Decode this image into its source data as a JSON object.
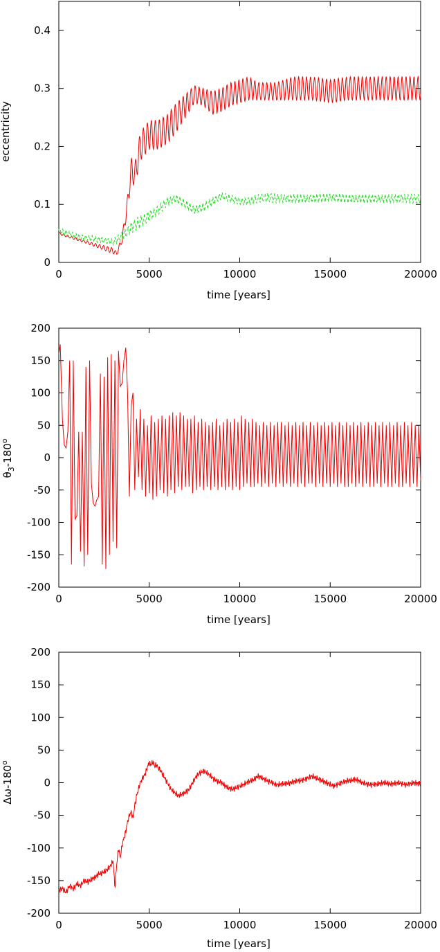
{
  "chart_data": [
    {
      "type": "line",
      "xlabel": "time [years]",
      "ylabel": "eccentricity",
      "xlim": [
        0,
        20000
      ],
      "ylim": [
        0,
        0.45
      ],
      "xticks": [
        0,
        5000,
        10000,
        15000,
        20000
      ],
      "yticks": [
        0,
        0.1,
        0.2,
        0.3,
        0.4
      ],
      "xtick_labels": [
        "0",
        "5000",
        "10000",
        "15000",
        "20000"
      ],
      "ytick_labels": [
        "0",
        "0.1",
        "0.2",
        "0.3",
        "0.4"
      ],
      "grid": false,
      "series": [
        {
          "color": "#ee0000",
          "dash": "",
          "x": [
            0,
            500,
            1000,
            1500,
            2000,
            2500,
            3000,
            3200,
            3500,
            3800,
            4000,
            4200,
            4500,
            5000,
            5500,
            6000,
            6500,
            7000,
            7500,
            8000,
            8500,
            9000,
            9500,
            10000,
            10500,
            11000,
            12000,
            13000,
            14000,
            15000,
            16000,
            17000,
            18000,
            19000,
            20000
          ],
          "y": [
            0.05,
            0.045,
            0.04,
            0.035,
            0.03,
            0.025,
            0.02,
            0.015,
            0.04,
            0.1,
            0.16,
            0.15,
            0.2,
            0.22,
            0.22,
            0.23,
            0.25,
            0.27,
            0.29,
            0.285,
            0.275,
            0.28,
            0.29,
            0.295,
            0.3,
            0.295,
            0.295,
            0.3,
            0.3,
            0.295,
            0.3,
            0.3,
            0.3,
            0.3,
            0.3
          ],
          "osc_amp": [
            0.002,
            0.002,
            0.002,
            0.002,
            0.003,
            0.004,
            0.005,
            0.003,
            0.006,
            0.015,
            0.02,
            0.02,
            0.025,
            0.025,
            0.025,
            0.025,
            0.025,
            0.02,
            0.015,
            0.015,
            0.02,
            0.02,
            0.02,
            0.02,
            0.02,
            0.015,
            0.015,
            0.02,
            0.02,
            0.02,
            0.02,
            0.02,
            0.02,
            0.02,
            0.02
          ]
        },
        {
          "color": "#22dd22",
          "dash": "4,3",
          "x": [
            0,
            500,
            1000,
            1500,
            2000,
            2500,
            3000,
            3500,
            4000,
            4500,
            5000,
            5500,
            6000,
            6500,
            7000,
            7500,
            8000,
            8500,
            9000,
            9500,
            10000,
            10500,
            11000,
            11500,
            12000,
            13000,
            14000,
            15000,
            16000,
            17000,
            18000,
            19000,
            20000
          ],
          "y": [
            0.055,
            0.05,
            0.045,
            0.042,
            0.04,
            0.038,
            0.035,
            0.045,
            0.06,
            0.07,
            0.08,
            0.09,
            0.105,
            0.11,
            0.1,
            0.09,
            0.095,
            0.105,
            0.115,
            0.11,
            0.105,
            0.105,
            0.11,
            0.112,
            0.11,
            0.11,
            0.11,
            0.112,
            0.11,
            0.11,
            0.11,
            0.11,
            0.11
          ],
          "osc_amp": [
            0.004,
            0.004,
            0.004,
            0.004,
            0.004,
            0.004,
            0.004,
            0.006,
            0.008,
            0.008,
            0.008,
            0.006,
            0.006,
            0.006,
            0.006,
            0.006,
            0.006,
            0.006,
            0.005,
            0.005,
            0.005,
            0.005,
            0.006,
            0.006,
            0.006,
            0.006,
            0.006,
            0.006,
            0.006,
            0.006,
            0.006,
            0.006,
            0.006
          ]
        }
      ]
    },
    {
      "type": "line",
      "xlabel": "time [years]",
      "ylabel_main": "θ",
      "ylabel_sub": "3",
      "ylabel_rest": "-180",
      "ylabel_sup": "o",
      "xlim": [
        0,
        20000
      ],
      "ylim": [
        -200,
        200
      ],
      "xticks": [
        0,
        5000,
        10000,
        15000,
        20000
      ],
      "yticks": [
        -200,
        -150,
        -100,
        -50,
        0,
        50,
        100,
        150,
        200
      ],
      "xtick_labels": [
        "0",
        "5000",
        "10000",
        "15000",
        "20000"
      ],
      "ytick_labels": [
        "-200",
        "-150",
        "-100",
        "-50",
        "0",
        "50",
        "100",
        "150",
        "200"
      ],
      "grid": false,
      "series": [
        {
          "color": "#ee0000",
          "dash": "",
          "x": [
            0,
            80,
            200,
            300,
            400,
            500,
            600,
            700,
            800,
            900,
            1000,
            1100,
            1200,
            1300,
            1400,
            1500,
            1600,
            1700,
            1800,
            1900,
            2000,
            2100,
            2200,
            2300,
            2400,
            2500,
            2600,
            2700,
            2800,
            2900,
            3000,
            3100,
            3200,
            3300,
            3400,
            3500,
            3600,
            3700,
            3800,
            3900,
            4000,
            4100,
            4200,
            4300,
            4400,
            4500,
            4600,
            4700,
            4800,
            4900,
            5000,
            5100,
            5200,
            5300,
            5400,
            5500,
            5600,
            5700,
            5800,
            5900,
            6000,
            6100,
            6200,
            6300,
            6400,
            6500,
            6600,
            6700,
            6800,
            6900,
            7000,
            7100,
            7200,
            7300,
            7400,
            7500,
            7600,
            7700,
            7800,
            7900,
            8000,
            8100,
            8200,
            8300,
            8400,
            8500,
            8600,
            8700,
            8800,
            8900,
            9000,
            9100,
            9200,
            9300,
            9400,
            9500,
            9600,
            9700,
            9800,
            9900,
            10000,
            10100,
            10200,
            10300,
            10400,
            10500,
            10600,
            10700,
            10800,
            10900,
            11000,
            11100,
            11200,
            11300,
            11400,
            11500,
            11600,
            11700,
            11800,
            11900,
            12000,
            12100,
            12200,
            12300,
            12400,
            12500,
            12600,
            12700,
            12800,
            12900,
            13000,
            13100,
            13200,
            13300,
            13400,
            13500,
            13600,
            13700,
            13800,
            13900,
            14000,
            14100,
            14200,
            14300,
            14400,
            14500,
            14600,
            14700,
            14800,
            14900,
            15000,
            15100,
            15200,
            15300,
            15400,
            15500,
            15600,
            15700,
            15800,
            15900,
            16000,
            16100,
            16200,
            16300,
            16400,
            16500,
            16600,
            16700,
            16800,
            16900,
            17000,
            17100,
            17200,
            17300,
            17400,
            17500,
            17600,
            17700,
            17800,
            17900,
            18000,
            18100,
            18200,
            18300,
            18400,
            18500,
            18600,
            18700,
            18800,
            18900,
            19000,
            19100,
            19200,
            19300,
            19400,
            19500,
            19600,
            19700,
            19800,
            19900,
            20000
          ],
          "y": [
            160,
            175,
            60,
            20,
            15,
            40,
            150,
            -165,
            150,
            -95,
            -90,
            40,
            -145,
            40,
            -168,
            140,
            -150,
            150,
            -40,
            -70,
            -75,
            -65,
            -60,
            130,
            -165,
            125,
            -172,
            155,
            -150,
            160,
            -130,
            150,
            -140,
            165,
            110,
            115,
            150,
            170,
            100,
            -60,
            80,
            100,
            -50,
            60,
            -30,
            75,
            -50,
            60,
            -60,
            50,
            -55,
            65,
            -65,
            55,
            -60,
            60,
            -50,
            65,
            -55,
            60,
            -60,
            65,
            -50,
            70,
            -55,
            65,
            -45,
            70,
            -50,
            65,
            -45,
            60,
            -45,
            60,
            -55,
            65,
            -50,
            55,
            -45,
            60,
            -50,
            55,
            -45,
            50,
            -50,
            55,
            -45,
            60,
            -50,
            50,
            -45,
            55,
            -50,
            60,
            -45,
            55,
            -50,
            60,
            -45,
            55,
            -50,
            65,
            -45,
            60,
            -40,
            55,
            -45,
            60,
            -45,
            55,
            -40,
            50,
            -45,
            55,
            -40,
            50,
            -45,
            55,
            -40,
            50,
            -45,
            55,
            -40,
            55,
            -45,
            50,
            -40,
            55,
            -45,
            50,
            -40,
            55,
            -45,
            50,
            -40,
            55,
            -45,
            50,
            -40,
            55,
            -40,
            50,
            -45,
            55,
            -40,
            50,
            -45,
            55,
            -40,
            50,
            -45,
            55,
            -40,
            50,
            -45,
            55,
            -40,
            50,
            -45,
            55,
            -45,
            50,
            -40,
            55,
            -45,
            50,
            -40,
            55,
            -45,
            50,
            -40,
            55,
            -45,
            50,
            -45,
            55,
            -40,
            50,
            -45,
            55,
            -40,
            50,
            -45,
            55,
            -45,
            50,
            -40,
            55,
            -45,
            50,
            -45,
            55,
            -40,
            50,
            -45,
            55,
            -40,
            50,
            -45,
            50,
            -35
          ]
        }
      ]
    },
    {
      "type": "line",
      "xlabel": "time [years]",
      "ylabel_main": "Δω",
      "ylabel_rest": "-180",
      "ylabel_sup": "o",
      "xlim": [
        0,
        20000
      ],
      "ylim": [
        -200,
        200
      ],
      "xticks": [
        0,
        5000,
        10000,
        15000,
        20000
      ],
      "yticks": [
        -200,
        -150,
        -100,
        -50,
        0,
        50,
        100,
        150,
        200
      ],
      "xtick_labels": [
        "0",
        "5000",
        "10000",
        "15000",
        "20000"
      ],
      "ytick_labels": [
        "-200",
        "-150",
        "-100",
        "-50",
        "0",
        "50",
        "100",
        "150",
        "200"
      ],
      "grid": false,
      "series": [
        {
          "color": "#ee0000",
          "dash": "",
          "x": [
            0,
            200,
            400,
            600,
            800,
            1000,
            1200,
            1400,
            1600,
            1800,
            2000,
            2200,
            2400,
            2600,
            2800,
            3000,
            3100,
            3200,
            3300,
            3400,
            3500,
            3600,
            3700,
            3800,
            3900,
            4000,
            4100,
            4200,
            4300,
            4400,
            4500,
            4600,
            4700,
            4800,
            4900,
            5000,
            5100,
            5200,
            5300,
            5400,
            5500,
            5600,
            5700,
            5800,
            5900,
            6000,
            6200,
            6400,
            6600,
            6800,
            7000,
            7200,
            7400,
            7600,
            7800,
            8000,
            8200,
            8400,
            8600,
            8800,
            9000,
            9200,
            9400,
            9600,
            9800,
            10000,
            10200,
            10400,
            10600,
            10800,
            11000,
            11200,
            11400,
            11600,
            11800,
            12000,
            12400,
            12800,
            13200,
            13600,
            14000,
            14400,
            14800,
            15200,
            15600,
            16000,
            16400,
            16800,
            17200,
            17600,
            18000,
            18400,
            18800,
            19200,
            19600,
            20000
          ],
          "y": [
            -165,
            -162,
            -168,
            -158,
            -163,
            -155,
            -158,
            -150,
            -152,
            -148,
            -145,
            -140,
            -138,
            -135,
            -130,
            -120,
            -160,
            -125,
            -100,
            -115,
            -95,
            -85,
            -75,
            -60,
            -50,
            -45,
            -55,
            -35,
            -20,
            -10,
            0,
            5,
            10,
            15,
            25,
            30,
            28,
            32,
            25,
            28,
            22,
            20,
            15,
            10,
            5,
            0,
            -10,
            -15,
            -20,
            -18,
            -15,
            -10,
            0,
            10,
            15,
            18,
            15,
            10,
            5,
            2,
            0,
            -5,
            -8,
            -10,
            -8,
            -5,
            -3,
            0,
            3,
            5,
            10,
            8,
            5,
            2,
            0,
            -3,
            -2,
            0,
            3,
            5,
            10,
            5,
            0,
            -5,
            0,
            3,
            5,
            0,
            -3,
            -2,
            0,
            -2,
            0,
            -3,
            0,
            -2
          ],
          "noise": 5
        }
      ]
    }
  ]
}
